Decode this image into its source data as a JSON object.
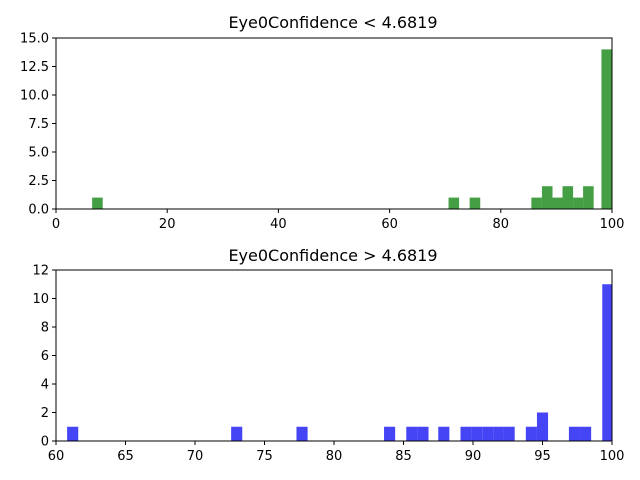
{
  "chart_data": [
    {
      "type": "bar",
      "title": "Eye0Confidence < 4.6819",
      "color": "#3a9a3a",
      "xlim": [
        0,
        100
      ],
      "ylim": [
        0,
        15
      ],
      "xticks": [
        0,
        20,
        40,
        60,
        80,
        100
      ],
      "yticks": [
        0.0,
        2.5,
        5.0,
        7.5,
        10.0,
        12.5,
        15.0
      ],
      "ytick_labels": [
        "0.0",
        "2.5",
        "5.0",
        "7.5",
        "10.0",
        "12.5",
        "15.0"
      ],
      "grid": false,
      "bins": [
        {
          "x0": 6.5,
          "x1": 8.4,
          "count": 1
        },
        {
          "x0": 70.6,
          "x1": 72.5,
          "count": 1
        },
        {
          "x0": 74.4,
          "x1": 76.3,
          "count": 1
        },
        {
          "x0": 85.5,
          "x1": 87.4,
          "count": 1
        },
        {
          "x0": 87.4,
          "x1": 89.3,
          "count": 2
        },
        {
          "x0": 89.3,
          "x1": 91.1,
          "count": 1
        },
        {
          "x0": 91.1,
          "x1": 93.0,
          "count": 2
        },
        {
          "x0": 93.0,
          "x1": 94.8,
          "count": 1
        },
        {
          "x0": 94.8,
          "x1": 96.7,
          "count": 2
        },
        {
          "x0": 98.1,
          "x1": 100.0,
          "count": 14
        }
      ]
    },
    {
      "type": "bar",
      "title": "Eye0Confidence > 4.6819",
      "color": "#3b3bf6",
      "xlim": [
        60,
        100
      ],
      "ylim": [
        0,
        12
      ],
      "xticks": [
        60,
        65,
        70,
        75,
        80,
        85,
        90,
        95,
        100
      ],
      "yticks": [
        0,
        2,
        4,
        6,
        8,
        10,
        12
      ],
      "ytick_labels": [
        "0",
        "2",
        "4",
        "6",
        "8",
        "10",
        "12"
      ],
      "grid": false,
      "bins": [
        {
          "x0": 60.8,
          "x1": 61.6,
          "count": 1
        },
        {
          "x0": 72.6,
          "x1": 73.4,
          "count": 1
        },
        {
          "x0": 77.3,
          "x1": 78.1,
          "count": 1
        },
        {
          "x0": 83.6,
          "x1": 84.4,
          "count": 1
        },
        {
          "x0": 85.2,
          "x1": 86.0,
          "count": 1
        },
        {
          "x0": 86.0,
          "x1": 86.8,
          "count": 1
        },
        {
          "x0": 87.5,
          "x1": 88.3,
          "count": 1
        },
        {
          "x0": 89.1,
          "x1": 89.9,
          "count": 1
        },
        {
          "x0": 89.9,
          "x1": 90.7,
          "count": 1
        },
        {
          "x0": 90.7,
          "x1": 91.5,
          "count": 1
        },
        {
          "x0": 91.5,
          "x1": 92.2,
          "count": 1
        },
        {
          "x0": 92.2,
          "x1": 93.0,
          "count": 1
        },
        {
          "x0": 93.8,
          "x1": 94.6,
          "count": 1
        },
        {
          "x0": 94.6,
          "x1": 95.4,
          "count": 2
        },
        {
          "x0": 96.9,
          "x1": 97.7,
          "count": 1
        },
        {
          "x0": 97.7,
          "x1": 98.5,
          "count": 1
        },
        {
          "x0": 99.3,
          "x1": 100.0,
          "count": 11
        }
      ]
    }
  ]
}
